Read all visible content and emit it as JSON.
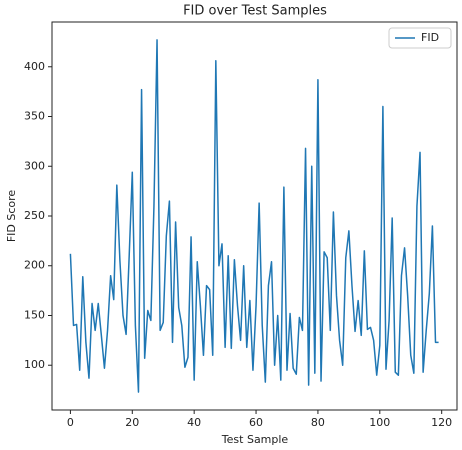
{
  "chart_data": {
    "type": "line",
    "title": "FID over Test Samples",
    "xlabel": "Test Sample",
    "ylabel": "FID Score",
    "x": [
      0,
      1,
      2,
      3,
      4,
      5,
      6,
      7,
      8,
      9,
      10,
      11,
      12,
      13,
      14,
      15,
      16,
      17,
      18,
      19,
      20,
      21,
      22,
      23,
      24,
      25,
      26,
      27,
      28,
      29,
      30,
      31,
      32,
      33,
      34,
      35,
      36,
      37,
      38,
      39,
      40,
      41,
      42,
      43,
      44,
      45,
      46,
      47,
      48,
      49,
      50,
      51,
      52,
      53,
      54,
      55,
      56,
      57,
      58,
      59,
      60,
      61,
      62,
      63,
      64,
      65,
      66,
      67,
      68,
      69,
      70,
      71,
      72,
      73,
      74,
      75,
      76,
      77,
      78,
      79,
      80,
      81,
      82,
      83,
      84,
      85,
      86,
      87,
      88,
      89,
      90,
      91,
      92,
      93,
      94,
      95,
      96,
      97,
      98,
      99,
      100,
      101,
      102,
      103,
      104,
      105,
      106,
      107,
      108,
      109,
      110,
      111,
      112,
      113,
      114,
      115,
      116,
      117,
      118,
      119
    ],
    "series": [
      {
        "name": "FID",
        "color": "#1f77b4",
        "values": [
          212,
          140,
          141,
          95,
          189,
          123,
          87,
          162,
          135,
          162,
          130,
          97,
          135,
          190,
          166,
          281,
          205,
          150,
          131,
          210,
          294,
          140,
          73,
          377,
          107,
          155,
          145,
          260,
          427,
          135,
          143,
          230,
          265,
          123,
          244,
          158,
          140,
          98,
          108,
          229,
          85,
          204,
          160,
          110,
          180,
          176,
          110,
          406,
          200,
          222,
          118,
          210,
          117,
          206,
          160,
          125,
          200,
          118,
          165,
          95,
          160,
          263,
          140,
          83,
          180,
          204,
          100,
          150,
          85,
          279,
          95,
          152,
          97,
          91,
          148,
          135,
          318,
          80,
          300,
          92,
          387,
          84,
          214,
          208,
          135,
          254,
          170,
          125,
          100,
          208,
          235,
          180,
          134,
          165,
          130,
          215,
          136,
          138,
          125,
          90,
          120,
          360,
          96,
          145,
          248,
          93,
          90,
          190,
          218,
          170,
          110,
          92,
          260,
          314,
          93,
          135,
          172,
          240,
          123,
          123
        ]
      }
    ],
    "xlim": [
      -5.95,
      124.95
    ],
    "xticks": [
      0,
      20,
      40,
      60,
      80,
      100,
      120
    ],
    "ylim": [
      55,
      445
    ],
    "yticks": [
      100,
      150,
      200,
      250,
      300,
      350,
      400
    ],
    "legend": "upper right",
    "grid": false
  }
}
